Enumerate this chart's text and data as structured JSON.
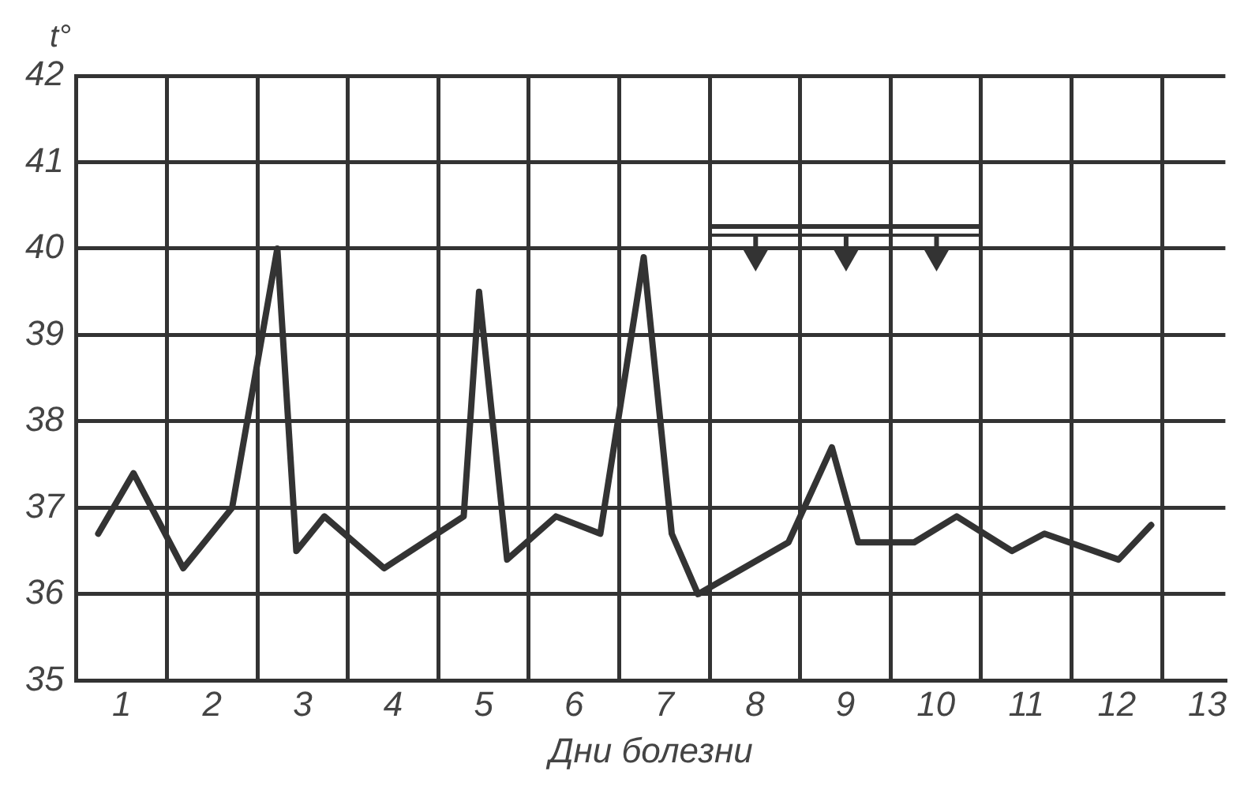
{
  "chart_data": {
    "type": "line",
    "xlabel": "Дни болезни",
    "ylabel": "t°",
    "x": [
      0.24,
      0.63,
      1.18,
      1.72,
      2.22,
      2.43,
      2.74,
      3.4,
      4.28,
      4.45,
      4.76,
      5.3,
      5.79,
      6.27,
      6.58,
      6.87,
      7.87,
      8.35,
      8.64,
      9.26,
      9.73,
      10.34,
      10.7,
      11.52,
      11.88
    ],
    "series": [
      {
        "color": "#333333",
        "values": [
          36.7,
          37.4,
          36.3,
          37.0,
          40.0,
          36.5,
          36.9,
          36.3,
          36.9,
          39.5,
          36.4,
          36.9,
          36.7,
          39.9,
          36.7,
          36.0,
          36.6,
          37.7,
          36.6,
          36.6,
          36.9,
          36.5,
          36.7,
          36.4,
          36.8
        ]
      }
    ],
    "xlim": [
      0,
      12.7
    ],
    "xticks": [
      {
        "value": 0.5,
        "label": "1"
      },
      {
        "value": 1,
        "label": null
      },
      {
        "value": 1.5,
        "label": "2"
      },
      {
        "value": 2,
        "label": null
      },
      {
        "value": 2.5,
        "label": "3"
      },
      {
        "value": 3,
        "label": null
      },
      {
        "value": 3.5,
        "label": "4"
      },
      {
        "value": 4,
        "label": null
      },
      {
        "value": 4.5,
        "label": "5"
      },
      {
        "value": 5,
        "label": null
      },
      {
        "value": 5.5,
        "label": "6"
      },
      {
        "value": 6,
        "label": null
      },
      {
        "value": 6.5,
        "label": "7"
      },
      {
        "value": 7,
        "label": null
      },
      {
        "value": 7.5,
        "label": "8"
      },
      {
        "value": 8,
        "label": null
      },
      {
        "value": 8.5,
        "label": "9"
      },
      {
        "value": 9,
        "label": null
      },
      {
        "value": 9.5,
        "label": "10"
      },
      {
        "value": 10,
        "label": null
      },
      {
        "value": 10.5,
        "label": "11"
      },
      {
        "value": 11,
        "label": null
      },
      {
        "value": 11.5,
        "label": "12"
      },
      {
        "value": 12,
        "label": null
      },
      {
        "value": 12.5,
        "label": "13"
      }
    ],
    "ylim": [
      35,
      42
    ],
    "yticks": [
      35,
      36,
      37,
      38,
      39,
      40,
      41,
      42
    ],
    "grid": true,
    "legend": false,
    "marker": "none",
    "line_style": "solid"
  }
}
